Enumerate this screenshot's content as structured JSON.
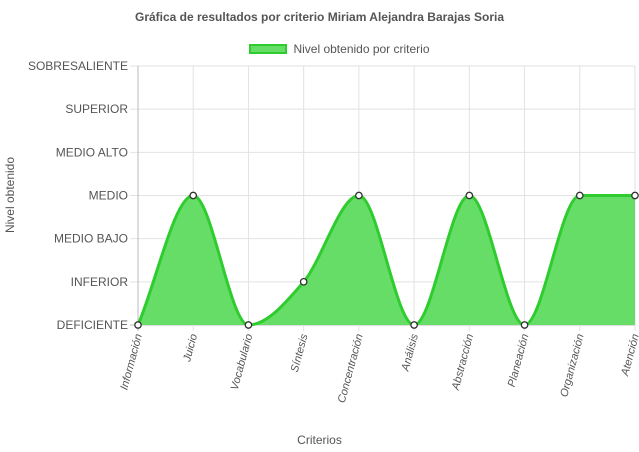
{
  "chart_data": {
    "type": "area",
    "title": "Gráfica de resultados por criterio Miriam Alejandra Barajas Soria",
    "xlabel": "Criterios",
    "ylabel": "Nivel obtenido",
    "levels": [
      "DEFICIENTE",
      "INFERIOR",
      "MEDIO BAJO",
      "MEDIO",
      "MEDIO ALTO",
      "SUPERIOR",
      "SOBRESALIENTE"
    ],
    "categories": [
      "Información",
      "Juicio",
      "Vocabulario",
      "Síntesis",
      "Concentración",
      "Análisis",
      "Abstracción",
      "Planeación",
      "Organización",
      "Atención"
    ],
    "series": [
      {
        "name": "Nivel obtenido por criterio",
        "values": [
          "DEFICIENTE",
          "MEDIO",
          "DEFICIENTE",
          "INFERIOR",
          "MEDIO",
          "DEFICIENTE",
          "MEDIO",
          "DEFICIENTE",
          "MEDIO",
          "MEDIO"
        ]
      }
    ],
    "legend_position": "top",
    "grid": true,
    "colors": {
      "fill": "#66dd66",
      "line": "#2ecc2e",
      "point_border": "#333333",
      "point_fill": "#ffffff"
    }
  }
}
